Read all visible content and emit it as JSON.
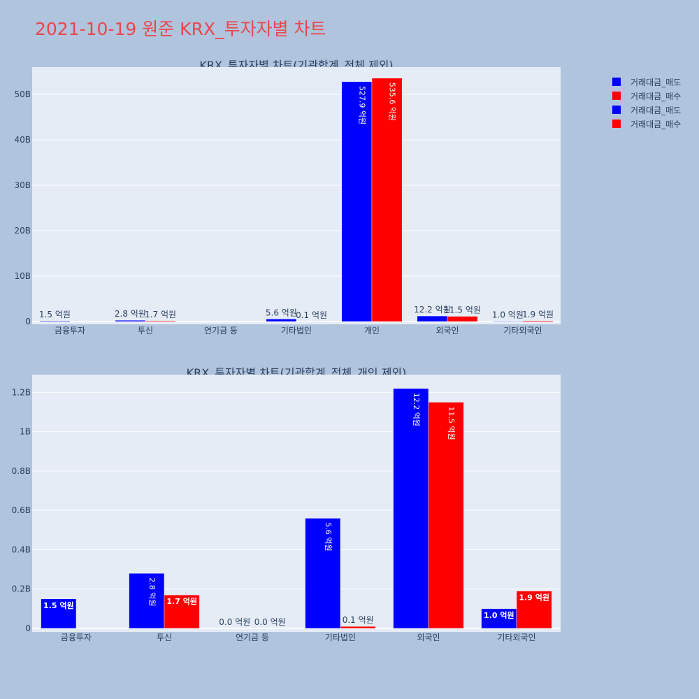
{
  "page_title": "2021-10-19 원준 KRX_투자자별 차트",
  "legend": [
    {
      "label": "거래대금_매도",
      "color": "#0000ff"
    },
    {
      "label": "거래대금_매수",
      "color": "#ff0000"
    },
    {
      "label": "거래대금_매도",
      "color": "#0000ff"
    },
    {
      "label": "거래대금_매수",
      "color": "#ff0000"
    }
  ],
  "chart_data": [
    {
      "type": "bar",
      "title": "KRX_투자자별 차트(기관합계_전체 제외)",
      "categories": [
        "금융투자",
        "투신",
        "연기금 등",
        "기타법인",
        "개인",
        "외국인",
        "기타외국인"
      ],
      "ylim": [
        0,
        56000000000
      ],
      "yticks": [
        0,
        10000000000,
        20000000000,
        30000000000,
        40000000000,
        50000000000
      ],
      "ytick_labels": [
        "0",
        "10B",
        "20B",
        "30B",
        "40B",
        "50B"
      ],
      "grid": true,
      "series": [
        {
          "name": "거래대금_매도",
          "color": "#0000ff",
          "values": [
            150000000,
            280000000,
            0,
            560000000,
            52790000000,
            1220000000,
            100000000
          ],
          "labels": [
            "1.5 억원",
            "2.8 억원",
            "",
            "5.6 억원",
            "527.9 억원",
            "12.2 억원",
            "1.0 억원"
          ]
        },
        {
          "name": "거래대금_매수",
          "color": "#ff0000",
          "values": [
            0,
            170000000,
            0,
            10000000,
            53560000000,
            1150000000,
            190000000
          ],
          "labels": [
            "",
            "1.7 억원",
            "",
            "0.1 억원",
            "535.6 억원",
            "11.5 억원",
            "1.9 억원"
          ]
        }
      ]
    },
    {
      "type": "bar",
      "title": "KRX_투자자별 차트(기관합계_전체_개인 제외)",
      "categories": [
        "금융투자",
        "투신",
        "연기금 등",
        "기타법인",
        "외국인",
        "기타외국인"
      ],
      "ylim": [
        0,
        1290000000
      ],
      "yticks": [
        0,
        200000000,
        400000000,
        600000000,
        800000000,
        1000000000,
        1200000000
      ],
      "ytick_labels": [
        "0",
        "0.2B",
        "0.4B",
        "0.6B",
        "0.8B",
        "1B",
        "1.2B"
      ],
      "grid": true,
      "series": [
        {
          "name": "거래대금_매도",
          "color": "#0000ff",
          "values": [
            150000000,
            280000000,
            0,
            560000000,
            1220000000,
            100000000
          ],
          "labels": [
            "1.5 억원",
            "2.8 억원",
            "0.0 억원",
            "5.6 억원",
            "12.2 억원",
            "1.0 억원"
          ]
        },
        {
          "name": "거래대금_매수",
          "color": "#ff0000",
          "values": [
            0,
            170000000,
            0,
            10000000,
            1150000000,
            190000000
          ],
          "labels": [
            "",
            "1.7 억원",
            "0.0 억원",
            "0.1 억원",
            "11.5 억원",
            "1.9 억원"
          ]
        }
      ]
    }
  ]
}
